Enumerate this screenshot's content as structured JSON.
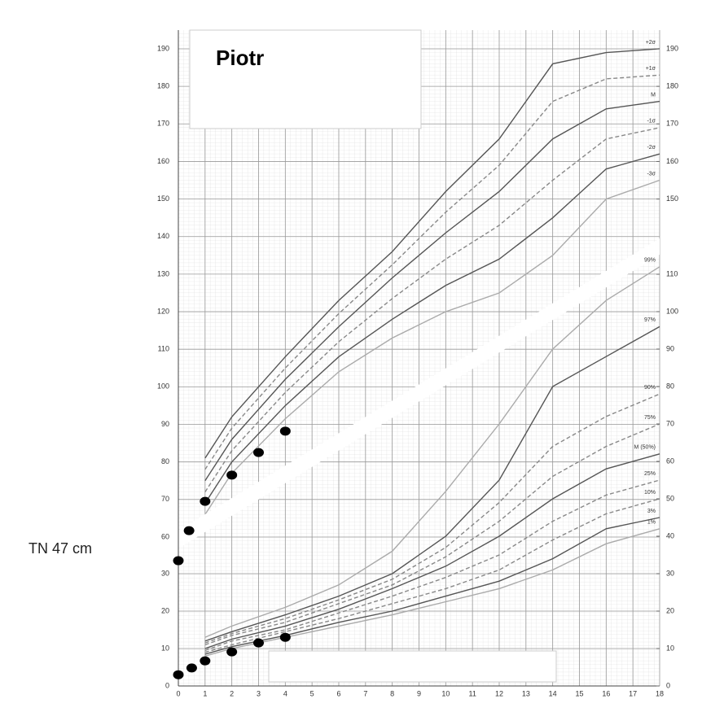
{
  "chart_data": [
    {
      "type": "line",
      "title": "Piotr",
      "annotation": "TN 47 cm",
      "xlim": [
        0,
        18
      ],
      "ylim": [
        52,
        195
      ],
      "yticks": [
        60,
        70,
        80,
        90,
        100,
        110,
        120,
        130,
        140,
        150,
        160,
        170,
        180,
        190
      ],
      "y2lim": [
        52,
        195
      ],
      "y2ticks": [
        150,
        160,
        170,
        180,
        190
      ],
      "grid": true,
      "x": [
        1,
        2,
        4,
        6,
        8,
        10,
        12,
        14,
        16,
        18
      ],
      "series": [
        {
          "name": "+2σ",
          "color": "#555555",
          "style": "solid",
          "values": [
            81,
            92,
            108,
            123,
            136,
            152,
            166,
            186,
            189,
            190
          ]
        },
        {
          "name": "+1σ",
          "color": "#888888",
          "style": "dashed",
          "values": [
            78,
            89,
            105,
            119.5,
            132.5,
            146.5,
            159,
            176,
            182,
            183
          ]
        },
        {
          "name": "M",
          "color": "#555555",
          "style": "solid",
          "values": [
            75,
            86,
            102,
            116,
            129,
            141,
            152,
            166,
            174,
            176
          ]
        },
        {
          "name": "-1σ",
          "color": "#888888",
          "style": "dashed",
          "values": [
            72,
            83,
            98.5,
            112,
            123.5,
            134,
            143,
            155,
            166,
            169
          ]
        },
        {
          "name": "-2σ",
          "color": "#555555",
          "style": "solid",
          "values": [
            69,
            80,
            95,
            108,
            118,
            127,
            134,
            145,
            158,
            162
          ]
        },
        {
          "name": "-3σ",
          "color": "#aaaaaa",
          "style": "solid",
          "values": [
            66,
            77,
            91.5,
            104,
            113,
            120,
            125,
            135,
            150,
            155
          ]
        }
      ],
      "points": {
        "color": "#000000",
        "x": [
          0,
          0.4,
          1,
          2,
          3,
          4
        ],
        "values": [
          53.7,
          61.7,
          69.5,
          76.5,
          82.5,
          88.2
        ]
      }
    },
    {
      "type": "line",
      "xlim": [
        0,
        18
      ],
      "xticks": [
        0,
        1,
        2,
        3,
        4,
        5,
        6,
        7,
        8,
        9,
        10,
        11,
        12,
        13,
        14,
        15,
        16,
        17,
        18
      ],
      "ylim": [
        0,
        115
      ],
      "yticks": [
        0,
        10,
        20,
        30
      ],
      "y2lim": [
        0,
        115
      ],
      "y2ticks": [
        0,
        10,
        20,
        30,
        40,
        50,
        60,
        70,
        80,
        90,
        100,
        110
      ],
      "grid": true,
      "x": [
        1,
        2,
        4,
        6,
        8,
        10,
        12,
        14,
        16,
        18
      ],
      "series": [
        {
          "name": "99%",
          "color": "#aaaaaa",
          "style": "solid",
          "values": [
            13,
            16,
            21,
            27,
            36,
            52,
            70,
            90,
            103,
            112
          ]
        },
        {
          "name": "97%",
          "color": "#555555",
          "style": "solid",
          "values": [
            12,
            14.5,
            19,
            24,
            30,
            40,
            55,
            80,
            88,
            96
          ]
        },
        {
          "name": "90%",
          "color": "#888888",
          "style": "dashed",
          "values": [
            11.5,
            14,
            18,
            23,
            28.5,
            37,
            49,
            64,
            72,
            78
          ]
        },
        {
          "name": "75%",
          "color": "#888888",
          "style": "dashed",
          "values": [
            11,
            13.5,
            17,
            22,
            27,
            34.5,
            44,
            56,
            64,
            70
          ]
        },
        {
          "name": "M (50%)",
          "color": "#555555",
          "style": "solid",
          "values": [
            10,
            12.5,
            16,
            20.5,
            26,
            32,
            40,
            50,
            58,
            62
          ]
        },
        {
          "name": "25%",
          "color": "#888888",
          "style": "dashed",
          "values": [
            9.5,
            12,
            15,
            19.5,
            24,
            29,
            35,
            44,
            51,
            55
          ]
        },
        {
          "name": "10%",
          "color": "#888888",
          "style": "dashed",
          "values": [
            9,
            11,
            14.5,
            18,
            22,
            26,
            31,
            39,
            46,
            50
          ]
        },
        {
          "name": "3%",
          "color": "#555555",
          "style": "solid",
          "values": [
            8.5,
            10.5,
            13.5,
            17,
            20,
            24,
            28,
            34,
            42,
            45
          ]
        },
        {
          "name": "1%",
          "color": "#aaaaaa",
          "style": "solid",
          "values": [
            8,
            10,
            13,
            16,
            19,
            22.5,
            26,
            31,
            38,
            42
          ]
        }
      ],
      "points": {
        "color": "#000000",
        "x": [
          0,
          0.5,
          1,
          2,
          3,
          4
        ],
        "values": [
          3,
          4.8,
          6.7,
          9.1,
          11.5,
          13
        ]
      }
    }
  ]
}
